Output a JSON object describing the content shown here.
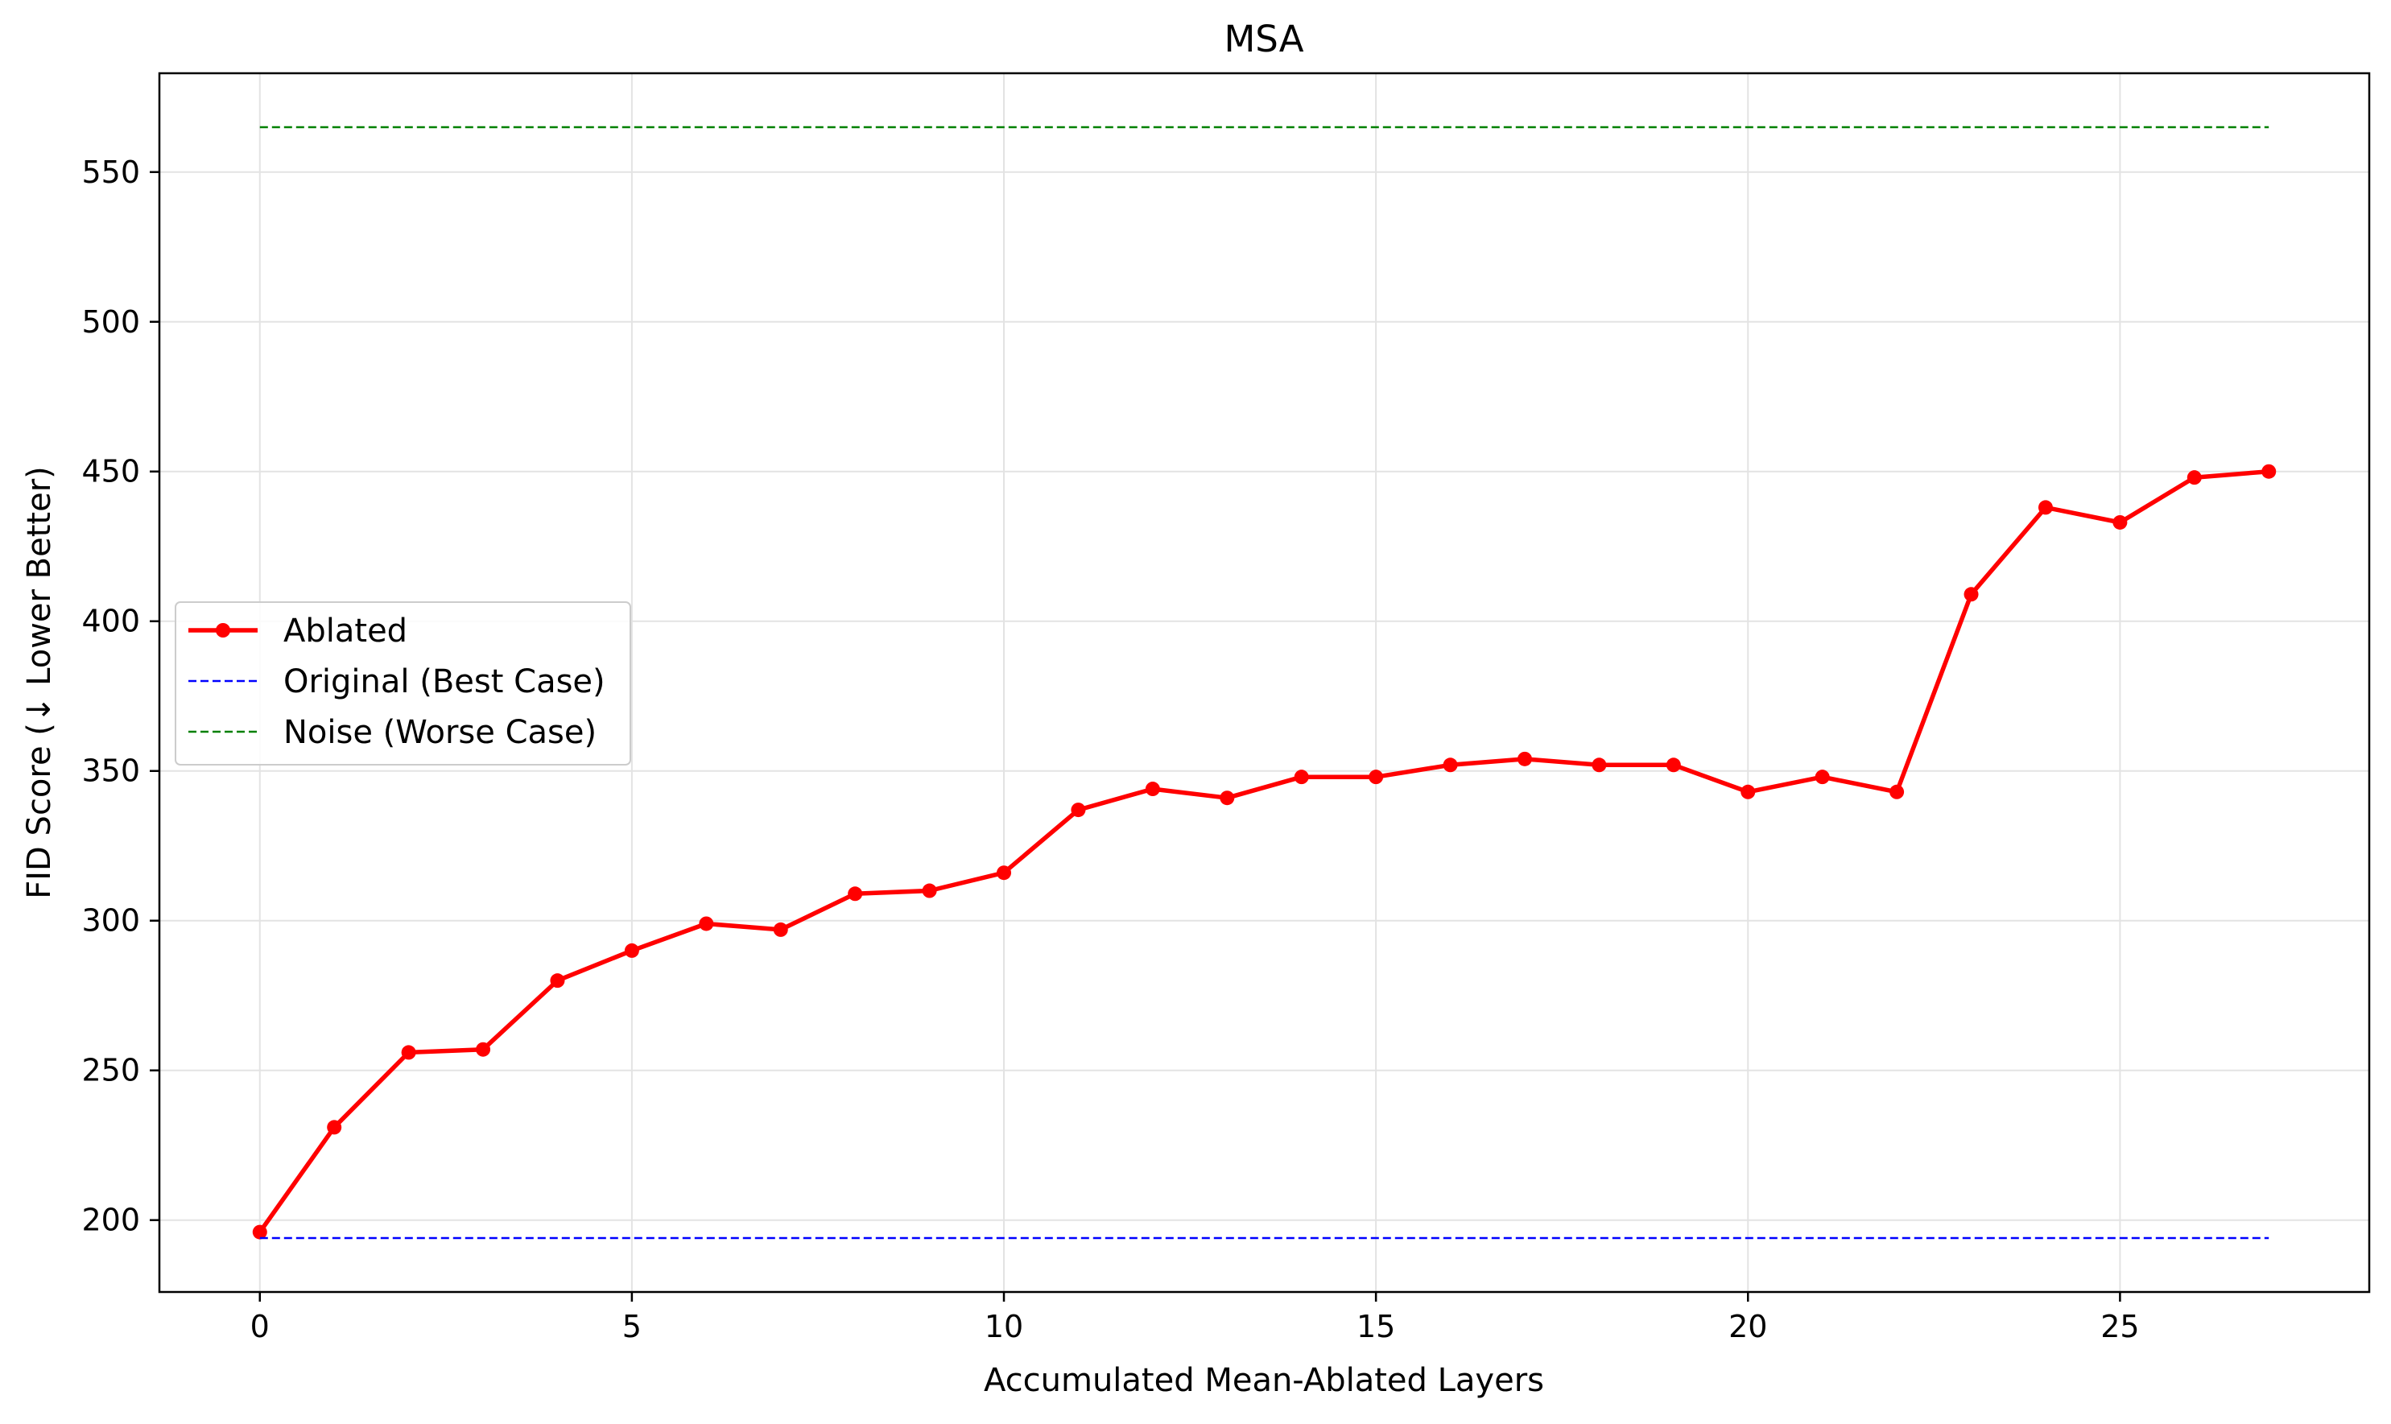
{
  "chart_data": {
    "type": "line",
    "title": "MSA",
    "xlabel": "Accumulated Mean-Ablated Layers",
    "ylabel": "FID Score (↓ Lower Better)",
    "xlim": [
      -1.35,
      28.35
    ],
    "ylim": [
      176,
      583
    ],
    "xticks": [
      0,
      5,
      10,
      15,
      20,
      25
    ],
    "yticks": [
      200,
      250,
      300,
      350,
      400,
      450,
      500,
      550
    ],
    "grid": true,
    "legend_position": "center-left",
    "series": [
      {
        "name": "Ablated",
        "style": "solid-with-markers",
        "color": "#ff0000",
        "x": [
          0,
          1,
          2,
          3,
          4,
          5,
          6,
          7,
          8,
          9,
          10,
          11,
          12,
          13,
          14,
          15,
          16,
          17,
          18,
          19,
          20,
          21,
          22,
          23,
          24,
          25,
          26,
          27
        ],
        "y": [
          196,
          231,
          256,
          257,
          280,
          290,
          299,
          297,
          309,
          310,
          316,
          337,
          344,
          341,
          348,
          348,
          352,
          354,
          352,
          352,
          343,
          348,
          343,
          409,
          438,
          433,
          448,
          450
        ]
      },
      {
        "name": "Original (Best Case)",
        "style": "dashed",
        "color": "#0000ff",
        "x": [
          0,
          27
        ],
        "y": [
          194,
          194
        ]
      },
      {
        "name": "Noise (Worse Case)",
        "style": "dashed",
        "color": "#008000",
        "x": [
          0,
          27
        ],
        "y": [
          565,
          565
        ]
      }
    ]
  }
}
